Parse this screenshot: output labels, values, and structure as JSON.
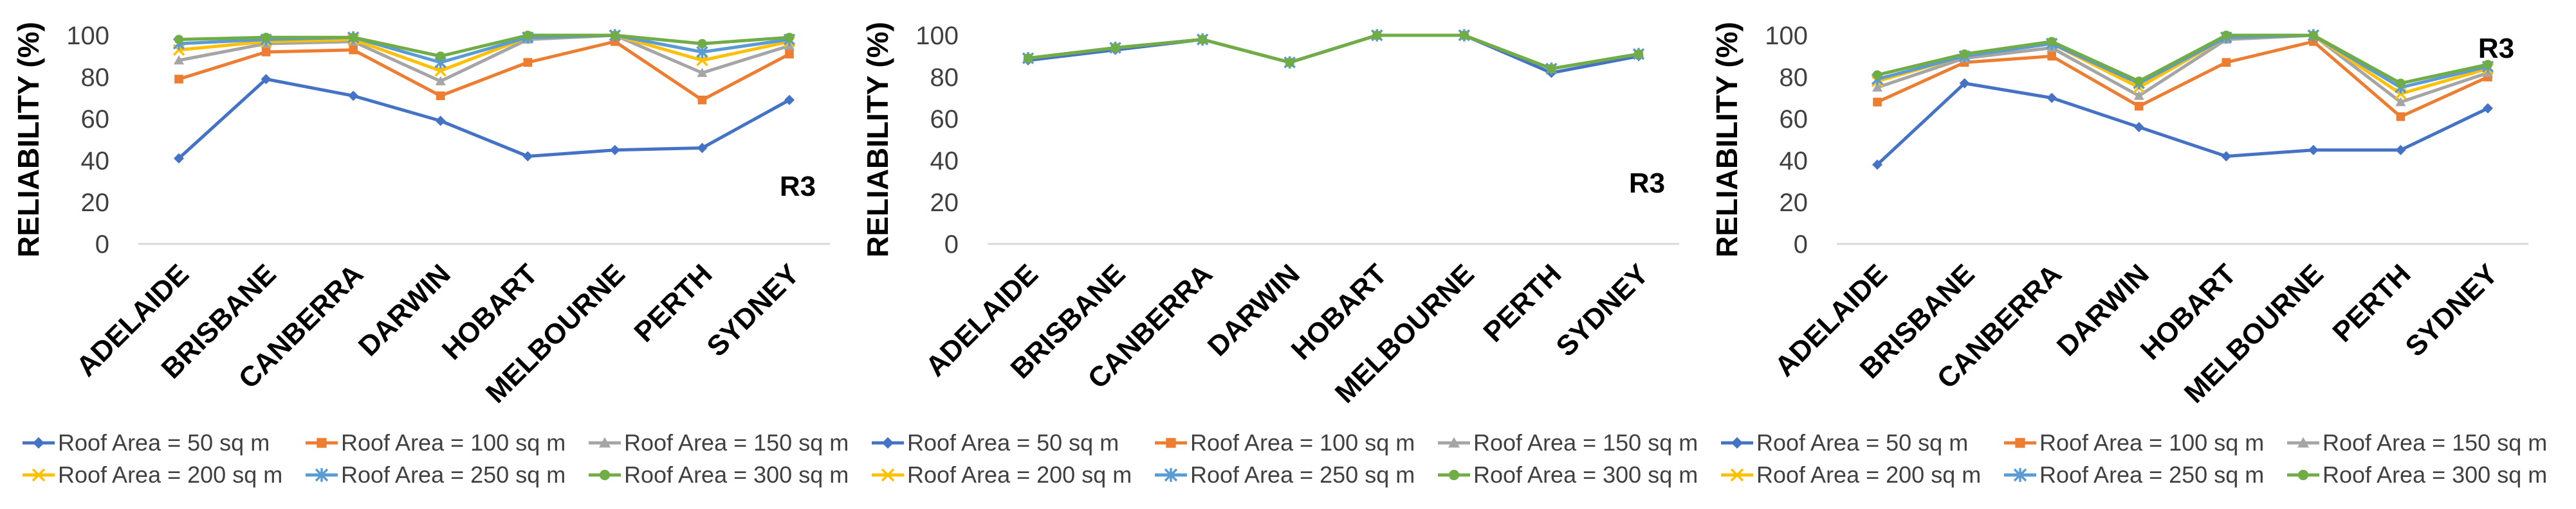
{
  "chart_data": [
    {
      "type": "line",
      "ylabel": "RELIABILITY (%)",
      "ylim": [
        0,
        100
      ],
      "yticks": [
        0,
        20,
        40,
        60,
        80,
        100
      ],
      "grid": false,
      "legend": "bottom",
      "annotation": "R3",
      "categories": [
        "ADELAIDE",
        "BRISBANE",
        "CANBERRA",
        "DARWIN",
        "HOBART",
        "MELBOURNE",
        "PERTH",
        "SYDNEY"
      ],
      "series": [
        {
          "name": "Roof Area = 50 sq m",
          "color": "#4472c4",
          "marker": "diamond",
          "values": [
            41,
            79,
            71,
            59,
            42,
            45,
            46,
            69
          ]
        },
        {
          "name": "Roof Area = 100 sq m",
          "color": "#ed7d31",
          "marker": "square",
          "values": [
            79,
            92,
            93,
            71,
            87,
            97,
            69,
            91
          ]
        },
        {
          "name": "Roof Area = 150 sq m",
          "color": "#a5a5a5",
          "marker": "triangle",
          "values": [
            88,
            96,
            97,
            78,
            98,
            100,
            82,
            95
          ]
        },
        {
          "name": "Roof Area = 200 sq m",
          "color": "#ffc000",
          "marker": "x",
          "values": [
            93,
            97,
            98,
            83,
            99,
            100,
            88,
            97
          ]
        },
        {
          "name": "Roof Area = 250 sq m",
          "color": "#5b9bd5",
          "marker": "star",
          "values": [
            96,
            98,
            99,
            87,
            99,
            100,
            92,
            98
          ]
        },
        {
          "name": "Roof Area = 300 sq m",
          "color": "#70ad47",
          "marker": "circle",
          "values": [
            98,
            99,
            99,
            90,
            100,
            100,
            96,
            99
          ]
        }
      ]
    },
    {
      "type": "line",
      "ylabel": "RELIABILITY (%)",
      "ylim": [
        0,
        100
      ],
      "yticks": [
        0,
        20,
        40,
        60,
        80,
        100
      ],
      "grid": false,
      "legend": "bottom",
      "annotation": "R3",
      "categories": [
        "ADELAIDE",
        "BRISBANE",
        "CANBERRA",
        "DARWIN",
        "HOBART",
        "MELBOURNE",
        "PERTH",
        "SYDNEY"
      ],
      "series": [
        {
          "name": "Roof Area = 50 sq m",
          "color": "#4472c4",
          "marker": "diamond",
          "values": [
            88,
            93,
            98,
            87,
            100,
            100,
            82,
            90
          ]
        },
        {
          "name": "Roof Area = 100 sq m",
          "color": "#ed7d31",
          "marker": "square",
          "values": [
            89,
            94,
            98,
            87,
            100,
            100,
            84,
            91
          ]
        },
        {
          "name": "Roof Area = 150 sq m",
          "color": "#a5a5a5",
          "marker": "triangle",
          "values": [
            89,
            94,
            98,
            87,
            100,
            100,
            84,
            91
          ]
        },
        {
          "name": "Roof Area = 200 sq m",
          "color": "#ffc000",
          "marker": "x",
          "values": [
            89,
            94,
            98,
            87,
            100,
            100,
            84,
            91
          ]
        },
        {
          "name": "Roof Area = 250 sq m",
          "color": "#5b9bd5",
          "marker": "star",
          "values": [
            89,
            94,
            98,
            87,
            100,
            100,
            84,
            91
          ]
        },
        {
          "name": "Roof Area = 300 sq m",
          "color": "#70ad47",
          "marker": "circle",
          "values": [
            89,
            94,
            98,
            87,
            100,
            100,
            84,
            91
          ]
        }
      ]
    },
    {
      "type": "line",
      "ylabel": "RELIABILITY (%)",
      "ylim": [
        0,
        100
      ],
      "yticks": [
        0,
        20,
        40,
        60,
        80,
        100
      ],
      "grid": false,
      "legend": "bottom",
      "annotation": "R3",
      "categories": [
        "ADELAIDE",
        "BRISBANE",
        "CANBERRA",
        "DARWIN",
        "HOBART",
        "MELBOURNE",
        "PERTH",
        "SYDNEY"
      ],
      "series": [
        {
          "name": "Roof Area = 50 sq m",
          "color": "#4472c4",
          "marker": "diamond",
          "values": [
            38,
            77,
            70,
            56,
            42,
            45,
            45,
            65
          ]
        },
        {
          "name": "Roof Area = 100 sq m",
          "color": "#ed7d31",
          "marker": "square",
          "values": [
            68,
            87,
            90,
            66,
            87,
            97,
            61,
            80
          ]
        },
        {
          "name": "Roof Area = 150 sq m",
          "color": "#a5a5a5",
          "marker": "triangle",
          "values": [
            75,
            89,
            94,
            71,
            98,
            100,
            68,
            82
          ]
        },
        {
          "name": "Roof Area = 200 sq m",
          "color": "#ffc000",
          "marker": "x",
          "values": [
            78,
            90,
            96,
            75,
            99,
            100,
            72,
            84
          ]
        },
        {
          "name": "Roof Area = 250 sq m",
          "color": "#5b9bd5",
          "marker": "star",
          "values": [
            79,
            90,
            96,
            77,
            99,
            100,
            75,
            85
          ]
        },
        {
          "name": "Roof Area = 300 sq m",
          "color": "#70ad47",
          "marker": "circle",
          "values": [
            81,
            91,
            97,
            78,
            100,
            100,
            77,
            86
          ]
        }
      ]
    }
  ]
}
